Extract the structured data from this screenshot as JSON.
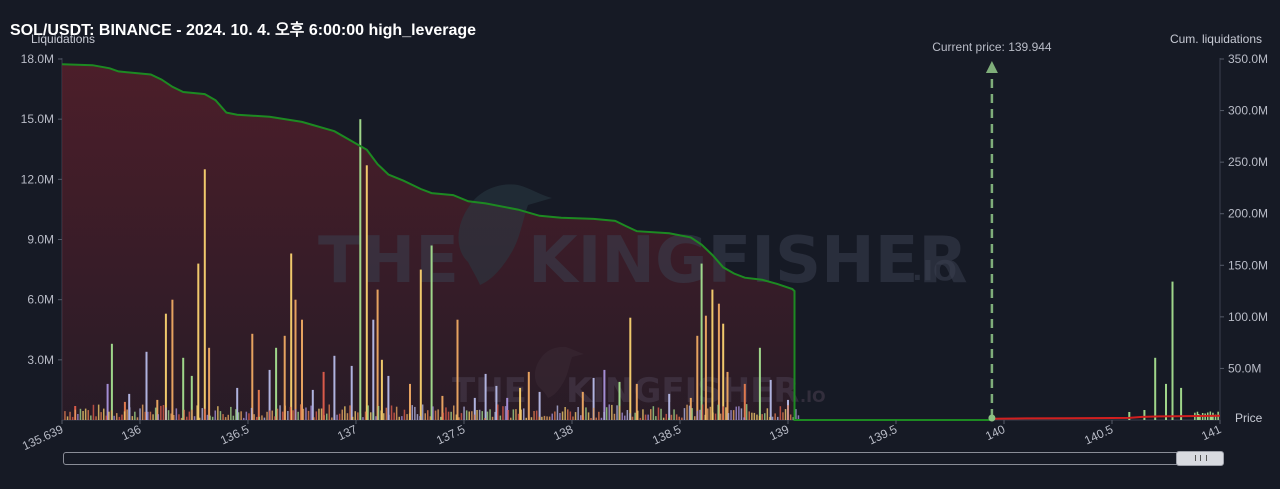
{
  "title": "SOL/USDT: BINANCE - 2024. 10. 4. 오후 6:00:00 high_leverage",
  "watermark": {
    "brand": "THE KINGFISHER",
    "suffix": ".IO"
  },
  "chart_data": {
    "type": "bar",
    "ylabel_left": "Liquidations",
    "ylabel_right": "Cum. liquidations",
    "xlabel": "Price",
    "xlim": [
      135.639,
      141
    ],
    "ylim_left": [
      0,
      18000000
    ],
    "ylim_right": [
      0,
      350000000
    ],
    "x_ticks": [
      {
        "v": 135.639,
        "label": "135.639"
      },
      {
        "v": 136,
        "label": "136"
      },
      {
        "v": 136.5,
        "label": "136.5"
      },
      {
        "v": 137,
        "label": "137"
      },
      {
        "v": 137.5,
        "label": "137.5"
      },
      {
        "v": 138,
        "label": "138"
      },
      {
        "v": 138.5,
        "label": "138.5"
      },
      {
        "v": 139,
        "label": "139"
      },
      {
        "v": 139.5,
        "label": "139.5"
      },
      {
        "v": 140,
        "label": "140"
      },
      {
        "v": 140.5,
        "label": "140.5"
      },
      {
        "v": 141,
        "label": "141"
      }
    ],
    "y_ticks_left": [
      {
        "v": 3000000,
        "label": "3.0M"
      },
      {
        "v": 6000000,
        "label": "6.0M"
      },
      {
        "v": 9000000,
        "label": "9.0M"
      },
      {
        "v": 12000000,
        "label": "12.0M"
      },
      {
        "v": 15000000,
        "label": "15.0M"
      },
      {
        "v": 18000000,
        "label": "18.0M"
      }
    ],
    "y_ticks_right": [
      {
        "v": 50000000,
        "label": "50.0M"
      },
      {
        "v": 100000000,
        "label": "100.0M"
      },
      {
        "v": 150000000,
        "label": "150.0M"
      },
      {
        "v": 200000000,
        "label": "200.0M"
      },
      {
        "v": 250000000,
        "label": "250.0M"
      },
      {
        "v": 300000000,
        "label": "300.0M"
      },
      {
        "v": 350000000,
        "label": "350.0M"
      }
    ],
    "current_price": {
      "value": 139.944,
      "label": "Current price: 139.944"
    },
    "colors": {
      "long_cum": "#1d8a22",
      "short_cum": "#d21f1f",
      "long_fill": "#5a1f2b",
      "bar_colors": [
        "#9fd68a",
        "#f0c96c",
        "#e6a260",
        "#df7a4f",
        "#b0b3df",
        "#a38dd4",
        "#d95a4a"
      ]
    },
    "cum_long": [
      [
        135.639,
        345000000
      ],
      [
        135.78,
        344000000
      ],
      [
        135.86,
        341000000
      ],
      [
        135.9,
        338000000
      ],
      [
        136.05,
        335000000
      ],
      [
        136.1,
        330000000
      ],
      [
        136.15,
        323000000
      ],
      [
        136.2,
        318000000
      ],
      [
        136.3,
        316000000
      ],
      [
        136.35,
        310000000
      ],
      [
        136.4,
        298000000
      ],
      [
        136.45,
        296000000
      ],
      [
        136.6,
        294000000
      ],
      [
        136.75,
        289000000
      ],
      [
        136.8,
        286000000
      ],
      [
        136.9,
        280000000
      ],
      [
        137.05,
        262000000
      ],
      [
        137.1,
        248000000
      ],
      [
        137.15,
        238000000
      ],
      [
        137.22,
        232000000
      ],
      [
        137.3,
        224000000
      ],
      [
        137.35,
        220000000
      ],
      [
        137.45,
        218000000
      ],
      [
        137.52,
        212000000
      ],
      [
        137.6,
        210000000
      ],
      [
        137.75,
        204000000
      ],
      [
        137.85,
        198000000
      ],
      [
        137.95,
        196000000
      ],
      [
        138.1,
        195000000
      ],
      [
        138.2,
        193000000
      ],
      [
        138.25,
        188000000
      ],
      [
        138.3,
        183000000
      ],
      [
        138.45,
        181000000
      ],
      [
        138.55,
        177000000
      ],
      [
        138.6,
        170000000
      ],
      [
        138.65,
        160000000
      ],
      [
        138.7,
        148000000
      ],
      [
        138.75,
        142000000
      ],
      [
        138.8,
        138000000
      ],
      [
        138.88,
        136000000
      ],
      [
        138.95,
        132000000
      ],
      [
        139.02,
        127000000
      ],
      [
        139.03,
        125000000
      ]
    ],
    "cum_short": [
      [
        139.944,
        0
      ],
      [
        140.1,
        400000
      ],
      [
        140.3,
        500000
      ],
      [
        140.5,
        800000
      ],
      [
        140.58,
        900000
      ],
      [
        140.64,
        1800000
      ],
      [
        140.72,
        2300000
      ],
      [
        140.8,
        2400000
      ],
      [
        140.9,
        2700000
      ],
      [
        141,
        3000000
      ]
    ],
    "bars_significant": [
      [
        135.7,
        700000,
        6
      ],
      [
        135.85,
        1800000,
        5
      ],
      [
        135.87,
        3800000,
        0
      ],
      [
        135.93,
        900000,
        3
      ],
      [
        135.95,
        1300000,
        4
      ],
      [
        136.03,
        3400000,
        4
      ],
      [
        136.08,
        1000000,
        2
      ],
      [
        136.12,
        5300000,
        1
      ],
      [
        136.15,
        6000000,
        2
      ],
      [
        136.2,
        3100000,
        0
      ],
      [
        136.24,
        2200000,
        0
      ],
      [
        136.27,
        7800000,
        1
      ],
      [
        136.3,
        12500000,
        1
      ],
      [
        136.32,
        3600000,
        2
      ],
      [
        136.45,
        1600000,
        4
      ],
      [
        136.52,
        4300000,
        2
      ],
      [
        136.55,
        1500000,
        3
      ],
      [
        136.6,
        2500000,
        4
      ],
      [
        136.63,
        3600000,
        0
      ],
      [
        136.67,
        4200000,
        2
      ],
      [
        136.7,
        8300000,
        1
      ],
      [
        136.72,
        6000000,
        2
      ],
      [
        136.75,
        5000000,
        2
      ],
      [
        136.8,
        1500000,
        4
      ],
      [
        136.85,
        2400000,
        6
      ],
      [
        136.9,
        3200000,
        4
      ],
      [
        136.98,
        2700000,
        4
      ],
      [
        137.02,
        15000000,
        0
      ],
      [
        137.05,
        12700000,
        1
      ],
      [
        137.08,
        5000000,
        4
      ],
      [
        137.1,
        6500000,
        2
      ],
      [
        137.12,
        3000000,
        1
      ],
      [
        137.15,
        2200000,
        4
      ],
      [
        137.25,
        1800000,
        2
      ],
      [
        137.3,
        7500000,
        1
      ],
      [
        137.35,
        8700000,
        0
      ],
      [
        137.4,
        1200000,
        2
      ],
      [
        137.47,
        5000000,
        2
      ],
      [
        137.55,
        1100000,
        4
      ],
      [
        137.6,
        2300000,
        4
      ],
      [
        137.65,
        1700000,
        4
      ],
      [
        137.7,
        1100000,
        5
      ],
      [
        137.76,
        1600000,
        1
      ],
      [
        137.8,
        2400000,
        2
      ],
      [
        137.85,
        1400000,
        4
      ],
      [
        138.05,
        1400000,
        2
      ],
      [
        138.1,
        2100000,
        4
      ],
      [
        138.15,
        2500000,
        5
      ],
      [
        138.22,
        1900000,
        0
      ],
      [
        138.27,
        5100000,
        1
      ],
      [
        138.3,
        1800000,
        2
      ],
      [
        138.45,
        1300000,
        4
      ],
      [
        138.55,
        1100000,
        2
      ],
      [
        138.58,
        4200000,
        2
      ],
      [
        138.6,
        7800000,
        0
      ],
      [
        138.62,
        5200000,
        2
      ],
      [
        138.65,
        6500000,
        1
      ],
      [
        138.68,
        5800000,
        2
      ],
      [
        138.7,
        4800000,
        1
      ],
      [
        138.72,
        2400000,
        2
      ],
      [
        138.8,
        1800000,
        3
      ],
      [
        138.87,
        3600000,
        0
      ],
      [
        138.92,
        2000000,
        4
      ],
      [
        139.0,
        1000000,
        4
      ],
      [
        140.58,
        400000,
        0
      ],
      [
        140.65,
        500000,
        0
      ],
      [
        140.7,
        3100000,
        0
      ],
      [
        140.75,
        1800000,
        0
      ],
      [
        140.78,
        6900000,
        0
      ],
      [
        140.82,
        1600000,
        0
      ],
      [
        140.9,
        300000,
        0
      ],
      [
        140.96,
        200000,
        0
      ]
    ]
  }
}
